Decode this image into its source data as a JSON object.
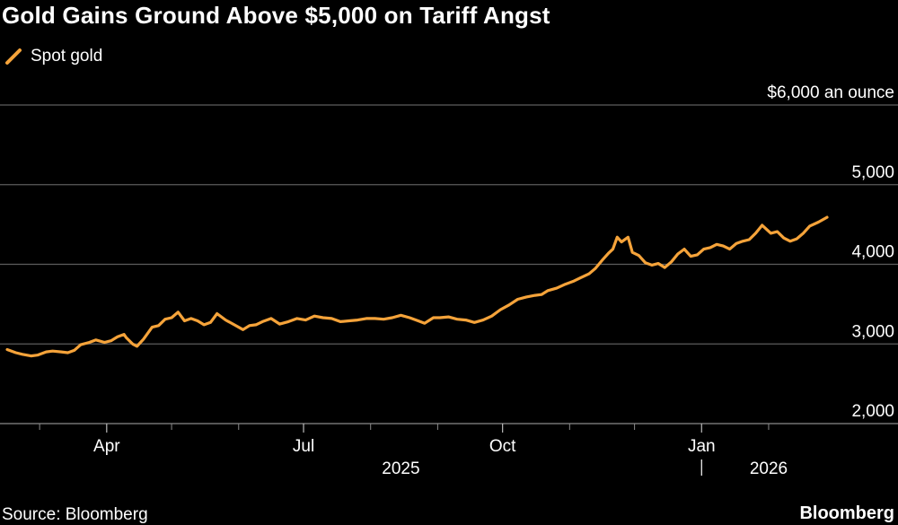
{
  "title": "Gold Gains Ground Above $5,000 on Tariff Angst",
  "source": "Source: Bloomberg",
  "brand": "Bloomberg",
  "colors": {
    "series": "#f5a33a",
    "grid": "#5c5c5c",
    "background": "#000000"
  },
  "chart_data": {
    "type": "line",
    "title": "Gold Gains Ground Above $5,000 on Tariff Angst",
    "unit_label": "$6,000 an ounce",
    "ylim": [
      2000,
      6000
    ],
    "y_ticks": [
      {
        "value": 6000,
        "label": "$6,000 an ounce"
      },
      {
        "value": 5000,
        "label": "5,000"
      },
      {
        "value": 4000,
        "label": "4,000"
      },
      {
        "value": 3000,
        "label": "3,000"
      },
      {
        "value": 2000,
        "label": "2,000"
      }
    ],
    "xlim": [
      "2025-02-14",
      "2026-02-28"
    ],
    "x_ticks": [
      {
        "date": "2025-04-01",
        "label": "Apr"
      },
      {
        "date": "2025-07-01",
        "label": "Jul"
      },
      {
        "date": "2025-10-01",
        "label": "Oct"
      },
      {
        "date": "2026-01-01",
        "label": "Jan"
      }
    ],
    "minor_ticks": [
      "2025-03-01",
      "2025-05-01",
      "2025-06-01",
      "2025-08-01",
      "2025-09-01",
      "2025-11-01",
      "2025-12-01",
      "2026-02-01"
    ],
    "year_labels": [
      {
        "date": "2025-08-15",
        "label": "2025"
      },
      {
        "date": "2026-02-01",
        "label": "2026"
      }
    ],
    "year_divider": "2026-01-01",
    "grid": true,
    "legend": "top-left",
    "series": [
      {
        "name": "Spot gold",
        "points": [
          [
            "2025-02-14",
            2930
          ],
          [
            "2025-02-18",
            2890
          ],
          [
            "2025-02-21",
            2870
          ],
          [
            "2025-02-25",
            2850
          ],
          [
            "2025-02-28",
            2860
          ],
          [
            "2025-03-04",
            2900
          ],
          [
            "2025-03-07",
            2910
          ],
          [
            "2025-03-11",
            2900
          ],
          [
            "2025-03-14",
            2890
          ],
          [
            "2025-03-17",
            2920
          ],
          [
            "2025-03-20",
            2990
          ],
          [
            "2025-03-24",
            3020
          ],
          [
            "2025-03-27",
            3050
          ],
          [
            "2025-03-31",
            3020
          ],
          [
            "2025-04-03",
            3040
          ],
          [
            "2025-04-06",
            3090
          ],
          [
            "2025-04-09",
            3120
          ],
          [
            "2025-04-10",
            3080
          ],
          [
            "2025-04-13",
            3000
          ],
          [
            "2025-04-15",
            2970
          ],
          [
            "2025-04-18",
            3060
          ],
          [
            "2025-04-22",
            3210
          ],
          [
            "2025-04-25",
            3230
          ],
          [
            "2025-04-28",
            3310
          ],
          [
            "2025-05-01",
            3330
          ],
          [
            "2025-05-04",
            3400
          ],
          [
            "2025-05-07",
            3290
          ],
          [
            "2025-05-10",
            3320
          ],
          [
            "2025-05-13",
            3290
          ],
          [
            "2025-05-16",
            3240
          ],
          [
            "2025-05-19",
            3270
          ],
          [
            "2025-05-22",
            3380
          ],
          [
            "2025-05-26",
            3300
          ],
          [
            "2025-05-30",
            3240
          ],
          [
            "2025-06-03",
            3180
          ],
          [
            "2025-06-06",
            3230
          ],
          [
            "2025-06-09",
            3240
          ],
          [
            "2025-06-12",
            3280
          ],
          [
            "2025-06-16",
            3320
          ],
          [
            "2025-06-20",
            3250
          ],
          [
            "2025-06-24",
            3280
          ],
          [
            "2025-06-28",
            3320
          ],
          [
            "2025-07-02",
            3300
          ],
          [
            "2025-07-06",
            3350
          ],
          [
            "2025-07-10",
            3330
          ],
          [
            "2025-07-14",
            3320
          ],
          [
            "2025-07-18",
            3280
          ],
          [
            "2025-07-22",
            3290
          ],
          [
            "2025-07-26",
            3300
          ],
          [
            "2025-07-30",
            3320
          ],
          [
            "2025-08-03",
            3320
          ],
          [
            "2025-08-07",
            3310
          ],
          [
            "2025-08-11",
            3330
          ],
          [
            "2025-08-15",
            3360
          ],
          [
            "2025-08-19",
            3330
          ],
          [
            "2025-08-23",
            3290
          ],
          [
            "2025-08-26",
            3260
          ],
          [
            "2025-08-30",
            3330
          ],
          [
            "2025-09-02",
            3330
          ],
          [
            "2025-09-06",
            3340
          ],
          [
            "2025-09-10",
            3310
          ],
          [
            "2025-09-14",
            3300
          ],
          [
            "2025-09-18",
            3270
          ],
          [
            "2025-09-22",
            3300
          ],
          [
            "2025-09-26",
            3350
          ],
          [
            "2025-09-30",
            3430
          ],
          [
            "2025-10-04",
            3490
          ],
          [
            "2025-10-08",
            3560
          ],
          [
            "2025-10-12",
            3590
          ],
          [
            "2025-10-16",
            3610
          ],
          [
            "2025-10-19",
            3620
          ],
          [
            "2025-10-22",
            3670
          ],
          [
            "2025-10-26",
            3700
          ],
          [
            "2025-10-30",
            3750
          ],
          [
            "2025-11-03",
            3790
          ],
          [
            "2025-11-06",
            3830
          ],
          [
            "2025-11-10",
            3880
          ],
          [
            "2025-11-13",
            3950
          ],
          [
            "2025-11-16",
            4050
          ],
          [
            "2025-11-19",
            4140
          ],
          [
            "2025-11-21",
            4190
          ],
          [
            "2025-11-23",
            4340
          ],
          [
            "2025-11-25",
            4280
          ],
          [
            "2025-11-28",
            4340
          ],
          [
            "2025-11-30",
            4150
          ],
          [
            "2025-12-03",
            4110
          ],
          [
            "2025-12-06",
            4020
          ],
          [
            "2025-12-09",
            3990
          ],
          [
            "2025-12-12",
            4010
          ],
          [
            "2025-12-15",
            3960
          ],
          [
            "2025-12-18",
            4030
          ],
          [
            "2025-12-21",
            4130
          ],
          [
            "2025-12-24",
            4190
          ],
          [
            "2025-12-27",
            4100
          ],
          [
            "2025-12-30",
            4120
          ],
          [
            "2026-01-02",
            4190
          ],
          [
            "2026-01-05",
            4210
          ],
          [
            "2026-01-08",
            4250
          ],
          [
            "2026-01-11",
            4230
          ],
          [
            "2026-01-14",
            4190
          ],
          [
            "2026-01-17",
            4260
          ],
          [
            "2026-01-20",
            4290
          ],
          [
            "2026-01-23",
            4310
          ],
          [
            "2026-01-26",
            4390
          ],
          [
            "2026-01-29",
            4490
          ],
          [
            "2026-02-02",
            4390
          ],
          [
            "2026-02-05",
            4410
          ],
          [
            "2026-02-08",
            4330
          ],
          [
            "2026-02-11",
            4290
          ],
          [
            "2026-02-14",
            4320
          ],
          [
            "2026-02-17",
            4390
          ],
          [
            "2026-02-20",
            4480
          ],
          [
            "2026-02-24",
            4530
          ],
          [
            "2026-02-28",
            4590
          ]
        ]
      }
    ]
  }
}
